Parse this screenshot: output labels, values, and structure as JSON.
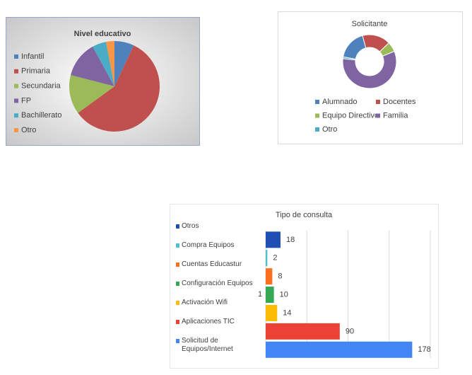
{
  "chart_data": [
    {
      "type": "pie",
      "title": "Nivel educativo",
      "categories": [
        "Infantil",
        "Primaria",
        "Secundaria",
        "FP",
        "Bachillerato",
        "Otro"
      ],
      "values": [
        7,
        58,
        14,
        13,
        5,
        3
      ],
      "colors": [
        "#4f81bd",
        "#c0504d",
        "#9bbb59",
        "#8064a2",
        "#4bacc6",
        "#f79646"
      ]
    },
    {
      "type": "donut",
      "title": "Solicitante",
      "categories": [
        "Alumnado",
        "Docentes",
        "Equipo Directivo",
        "Familia",
        "Otro"
      ],
      "values": [
        18,
        17,
        6,
        58,
        1
      ],
      "colors": [
        "#4f81bd",
        "#c0504d",
        "#9bbb59",
        "#8064a2",
        "#4bacc6"
      ]
    },
    {
      "type": "hbar",
      "title": "Tipo de consulta",
      "categories": [
        "Otros",
        "Compra Equipos",
        "Cuentas Educastur",
        "Configuración Equipos",
        "Activación Wifi",
        "Aplicaciones TIC",
        "Solicitud de Equipos/Internet"
      ],
      "values": [
        18,
        2,
        8,
        10,
        14,
        90,
        178
      ],
      "colors": [
        "#1f4fb4",
        "#4bc3cf",
        "#fa6e1e",
        "#34a853",
        "#fbbc05",
        "#ea4335",
        "#4285f4"
      ],
      "annotation": "1",
      "xlim": [
        0,
        200
      ],
      "grid_lines": [
        0,
        50,
        100,
        150,
        200
      ]
    }
  ]
}
